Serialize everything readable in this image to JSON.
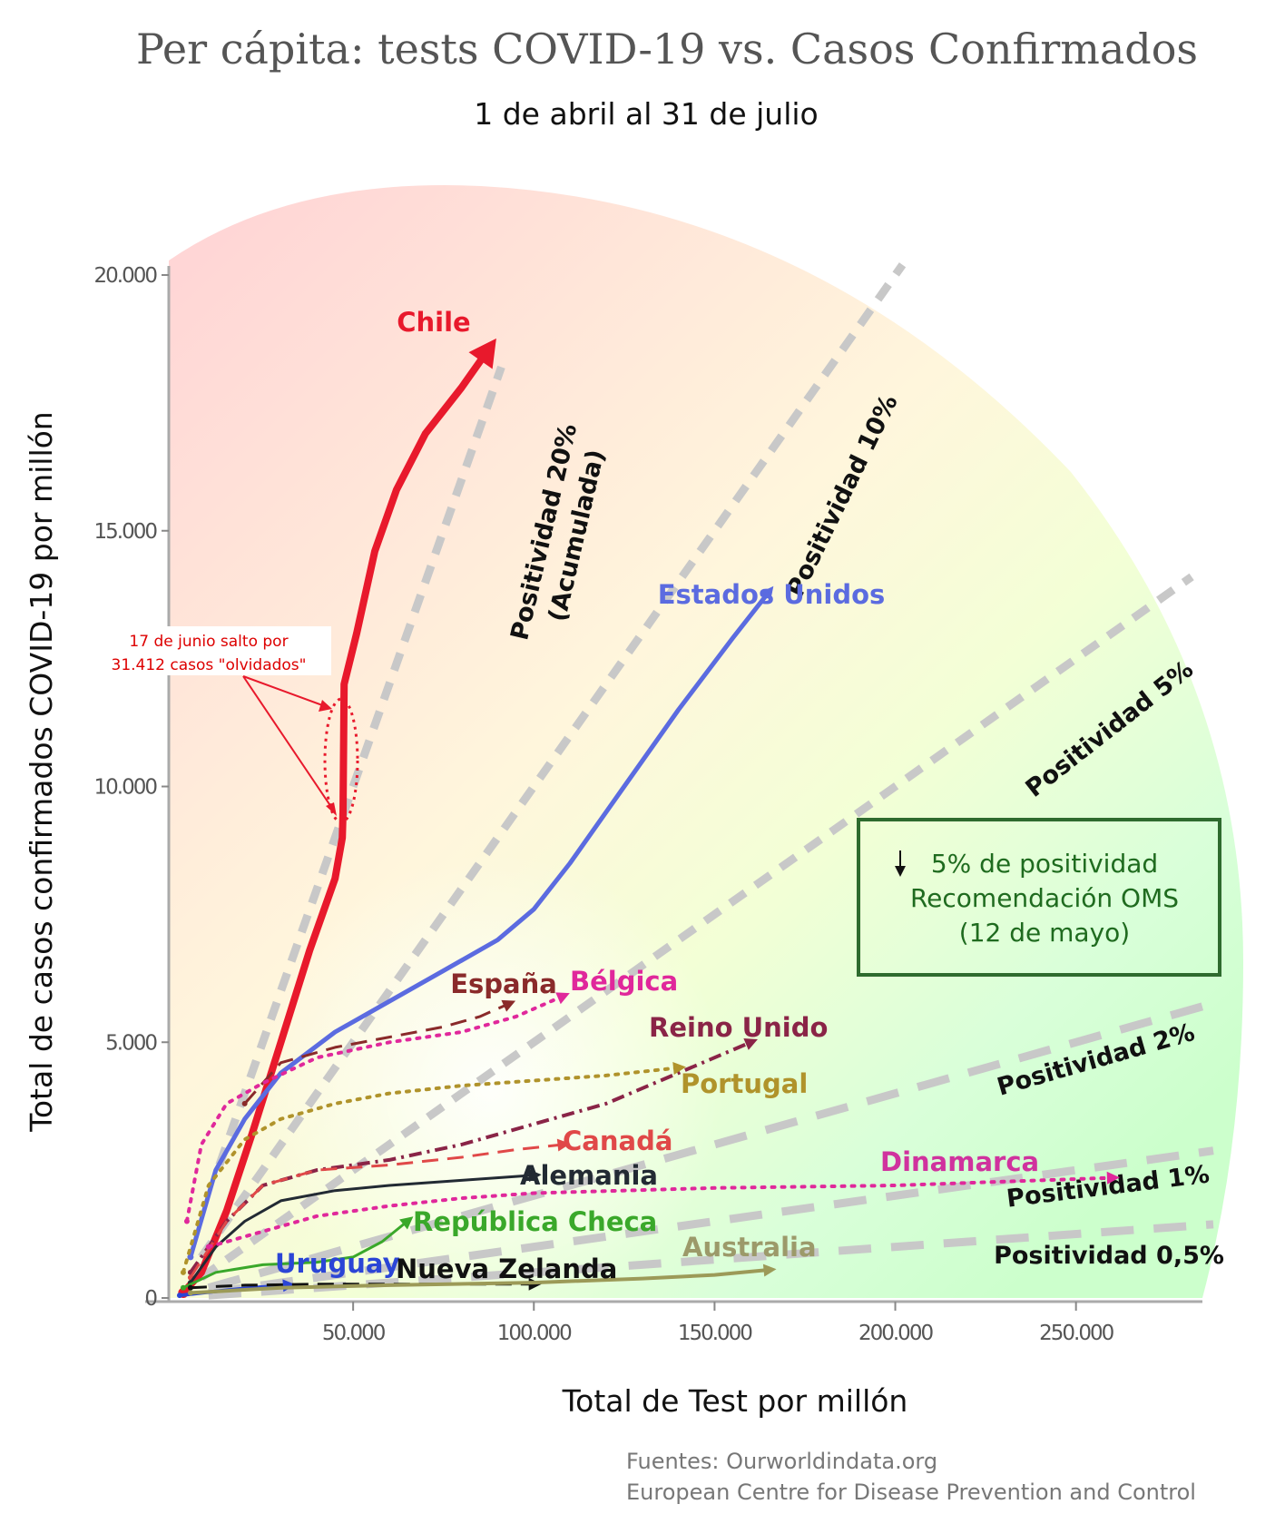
{
  "chart_data": {
    "type": "line",
    "title": "Per cápita: tests COVID-19 vs. Casos Confirmados",
    "subtitle": "1 de abril al 31 de julio",
    "xlabel": "Total de Test por millón",
    "ylabel": "Total de casos confirmados COVID-19 por millón",
    "xlim": [
      0,
      285000
    ],
    "ylim": [
      0,
      20000
    ],
    "x_ticks": [
      {
        "value": 50000,
        "label": "50.000"
      },
      {
        "value": 100000,
        "label": "100.000"
      },
      {
        "value": 150000,
        "label": "150.000"
      },
      {
        "value": 200000,
        "label": "200.000"
      },
      {
        "value": 250000,
        "label": "250.000"
      }
    ],
    "y_ticks": [
      {
        "value": 0,
        "label": "0"
      },
      {
        "value": 5000,
        "label": "5.000"
      },
      {
        "value": 10000,
        "label": "10.000"
      },
      {
        "value": 15000,
        "label": "15.000"
      },
      {
        "value": 20000,
        "label": "20.000"
      }
    ],
    "grid": false,
    "positivity_lines": [
      {
        "rate": 0.2,
        "label": "Positividad 20%",
        "label2": "(Acumulada)"
      },
      {
        "rate": 0.1,
        "label": "Positividad 10%"
      },
      {
        "rate": 0.05,
        "label": "Positividad 5%"
      },
      {
        "rate": 0.02,
        "label": "Positividad 2%"
      },
      {
        "rate": 0.01,
        "label": "Positividad 1%"
      },
      {
        "rate": 0.005,
        "label": "Positividad 0,5%"
      }
    ],
    "series": [
      {
        "name": "Chile",
        "color": "#e8192c",
        "style": "solid",
        "width": 8,
        "points": [
          [
            3000,
            100
          ],
          [
            8000,
            500
          ],
          [
            15000,
            1700
          ],
          [
            22000,
            3200
          ],
          [
            30000,
            5000
          ],
          [
            38000,
            6800
          ],
          [
            45000,
            8200
          ],
          [
            47000,
            9000
          ],
          [
            47200,
            9500
          ],
          [
            47500,
            12000
          ],
          [
            51000,
            13000
          ],
          [
            56000,
            14600
          ],
          [
            62000,
            15800
          ],
          [
            70000,
            16900
          ],
          [
            80000,
            17800
          ],
          [
            87000,
            18500
          ]
        ]
      },
      {
        "name": "Estados Unidos",
        "color": "#5b6be0",
        "style": "solid",
        "width": 5,
        "points": [
          [
            5000,
            800
          ],
          [
            12000,
            2500
          ],
          [
            20000,
            3500
          ],
          [
            30000,
            4400
          ],
          [
            45000,
            5200
          ],
          [
            60000,
            5800
          ],
          [
            75000,
            6400
          ],
          [
            90000,
            7000
          ],
          [
            100000,
            7600
          ],
          [
            110000,
            8500
          ],
          [
            125000,
            10000
          ],
          [
            140000,
            11500
          ],
          [
            155000,
            12900
          ],
          [
            165000,
            13800
          ]
        ]
      },
      {
        "name": "España",
        "color": "#8a2a2a",
        "style": "dashed",
        "width": 3,
        "points": [
          [
            20000,
            3800
          ],
          [
            30000,
            4600
          ],
          [
            45000,
            4900
          ],
          [
            60000,
            5100
          ],
          [
            75000,
            5300
          ],
          [
            85000,
            5500
          ],
          [
            93000,
            5750
          ]
        ]
      },
      {
        "name": "Bélgica",
        "color": "#e0289b",
        "style": "dotted",
        "width": 4,
        "points": [
          [
            4000,
            1500
          ],
          [
            8000,
            3000
          ],
          [
            15000,
            3800
          ],
          [
            25000,
            4200
          ],
          [
            40000,
            4700
          ],
          [
            60000,
            5000
          ],
          [
            80000,
            5200
          ],
          [
            95000,
            5500
          ],
          [
            108000,
            5900
          ]
        ]
      },
      {
        "name": "Reino Unido",
        "color": "#8a2447",
        "style": "dashdot",
        "width": 4,
        "points": [
          [
            5000,
            500
          ],
          [
            15000,
            1500
          ],
          [
            25000,
            2200
          ],
          [
            40000,
            2500
          ],
          [
            60000,
            2700
          ],
          [
            80000,
            3000
          ],
          [
            100000,
            3400
          ],
          [
            120000,
            3800
          ],
          [
            140000,
            4400
          ],
          [
            160000,
            5000
          ]
        ]
      },
      {
        "name": "Portugal",
        "color": "#b0932b",
        "style": "dotted",
        "width": 4,
        "points": [
          [
            3000,
            500
          ],
          [
            10000,
            2200
          ],
          [
            20000,
            3100
          ],
          [
            30000,
            3500
          ],
          [
            45000,
            3800
          ],
          [
            60000,
            4000
          ],
          [
            80000,
            4150
          ],
          [
            100000,
            4250
          ],
          [
            120000,
            4350
          ],
          [
            140000,
            4500
          ]
        ]
      },
      {
        "name": "Canadá",
        "color": "#e04848",
        "style": "dashed",
        "width": 3,
        "points": [
          [
            5000,
            400
          ],
          [
            15000,
            1500
          ],
          [
            25000,
            2200
          ],
          [
            40000,
            2500
          ],
          [
            60000,
            2600
          ],
          [
            80000,
            2750
          ],
          [
            95000,
            2900
          ],
          [
            108000,
            3000
          ]
        ]
      },
      {
        "name": "Alemania",
        "color": "#222a33",
        "style": "solid",
        "width": 3,
        "points": [
          [
            5000,
            300
          ],
          [
            12000,
            1000
          ],
          [
            20000,
            1500
          ],
          [
            30000,
            1900
          ],
          [
            45000,
            2100
          ],
          [
            60000,
            2200
          ],
          [
            80000,
            2300
          ],
          [
            100000,
            2400
          ]
        ]
      },
      {
        "name": "Dinamarca",
        "color": "#e0289b",
        "style": "dotted",
        "width": 4,
        "points": [
          [
            10000,
            1000
          ],
          [
            25000,
            1300
          ],
          [
            40000,
            1600
          ],
          [
            60000,
            1800
          ],
          [
            80000,
            1950
          ],
          [
            100000,
            2050
          ],
          [
            150000,
            2150
          ],
          [
            200000,
            2200
          ],
          [
            260000,
            2350
          ]
        ]
      },
      {
        "name": "República Checa",
        "color": "#3aa82a",
        "style": "solid",
        "width": 3,
        "points": [
          [
            3000,
            200
          ],
          [
            12000,
            500
          ],
          [
            25000,
            650
          ],
          [
            40000,
            700
          ],
          [
            50000,
            800
          ],
          [
            58000,
            1100
          ],
          [
            65000,
            1500
          ]
        ]
      },
      {
        "name": "Uruguay",
        "color": "#2b45d6",
        "style": "solid",
        "width": 4,
        "points": [
          [
            2000,
            50
          ],
          [
            8000,
            100
          ],
          [
            15000,
            150
          ],
          [
            22000,
            200
          ],
          [
            32000,
            250
          ]
        ]
      },
      {
        "name": "Nueva Zelanda",
        "color": "#111111",
        "style": "dashed",
        "width": 3,
        "points": [
          [
            5000,
            200
          ],
          [
            20000,
            250
          ],
          [
            40000,
            270
          ],
          [
            60000,
            270
          ],
          [
            80000,
            270
          ],
          [
            100000,
            270
          ]
        ]
      },
      {
        "name": "Australia",
        "color": "#9c9a58",
        "style": "solid",
        "width": 4,
        "points": [
          [
            5000,
            100
          ],
          [
            30000,
            200
          ],
          [
            60000,
            250
          ],
          [
            100000,
            300
          ],
          [
            130000,
            380
          ],
          [
            150000,
            450
          ],
          [
            165000,
            550
          ]
        ]
      }
    ],
    "labels": [
      {
        "text": "Chile",
        "color": "#e8192c"
      },
      {
        "text": "Estados Unidos",
        "color": "#5b6be0"
      },
      {
        "text": "España",
        "color": "#8a2a2a"
      },
      {
        "text": "Bélgica",
        "color": "#e0289b"
      },
      {
        "text": "Reino Unido",
        "color": "#8a2447"
      },
      {
        "text": "Portugal",
        "color": "#b0932b"
      },
      {
        "text": "Canadá",
        "color": "#e04848"
      },
      {
        "text": "Alemania",
        "color": "#222a33"
      },
      {
        "text": "Dinamarca",
        "color": "#d0329e"
      },
      {
        "text": "República Checa",
        "color": "#3aa82a"
      },
      {
        "text": "Uruguay",
        "color": "#2b45d6"
      },
      {
        "text": "Nueva Zelanda",
        "color": "#111111"
      },
      {
        "text": "Australia",
        "color": "#9c9a6a"
      }
    ],
    "annotation": {
      "line1": "17 de junio salto por",
      "line2": "31.412 casos \"olvidados\""
    },
    "who_box": {
      "line1": "5% de positividad",
      "line2": "Recomendación OMS",
      "line3": "(12 de mayo)"
    },
    "sources": {
      "line1": "Fuentes: Ourworldindata.org",
      "line2": "European Centre for Disease Prevention and Control"
    }
  }
}
